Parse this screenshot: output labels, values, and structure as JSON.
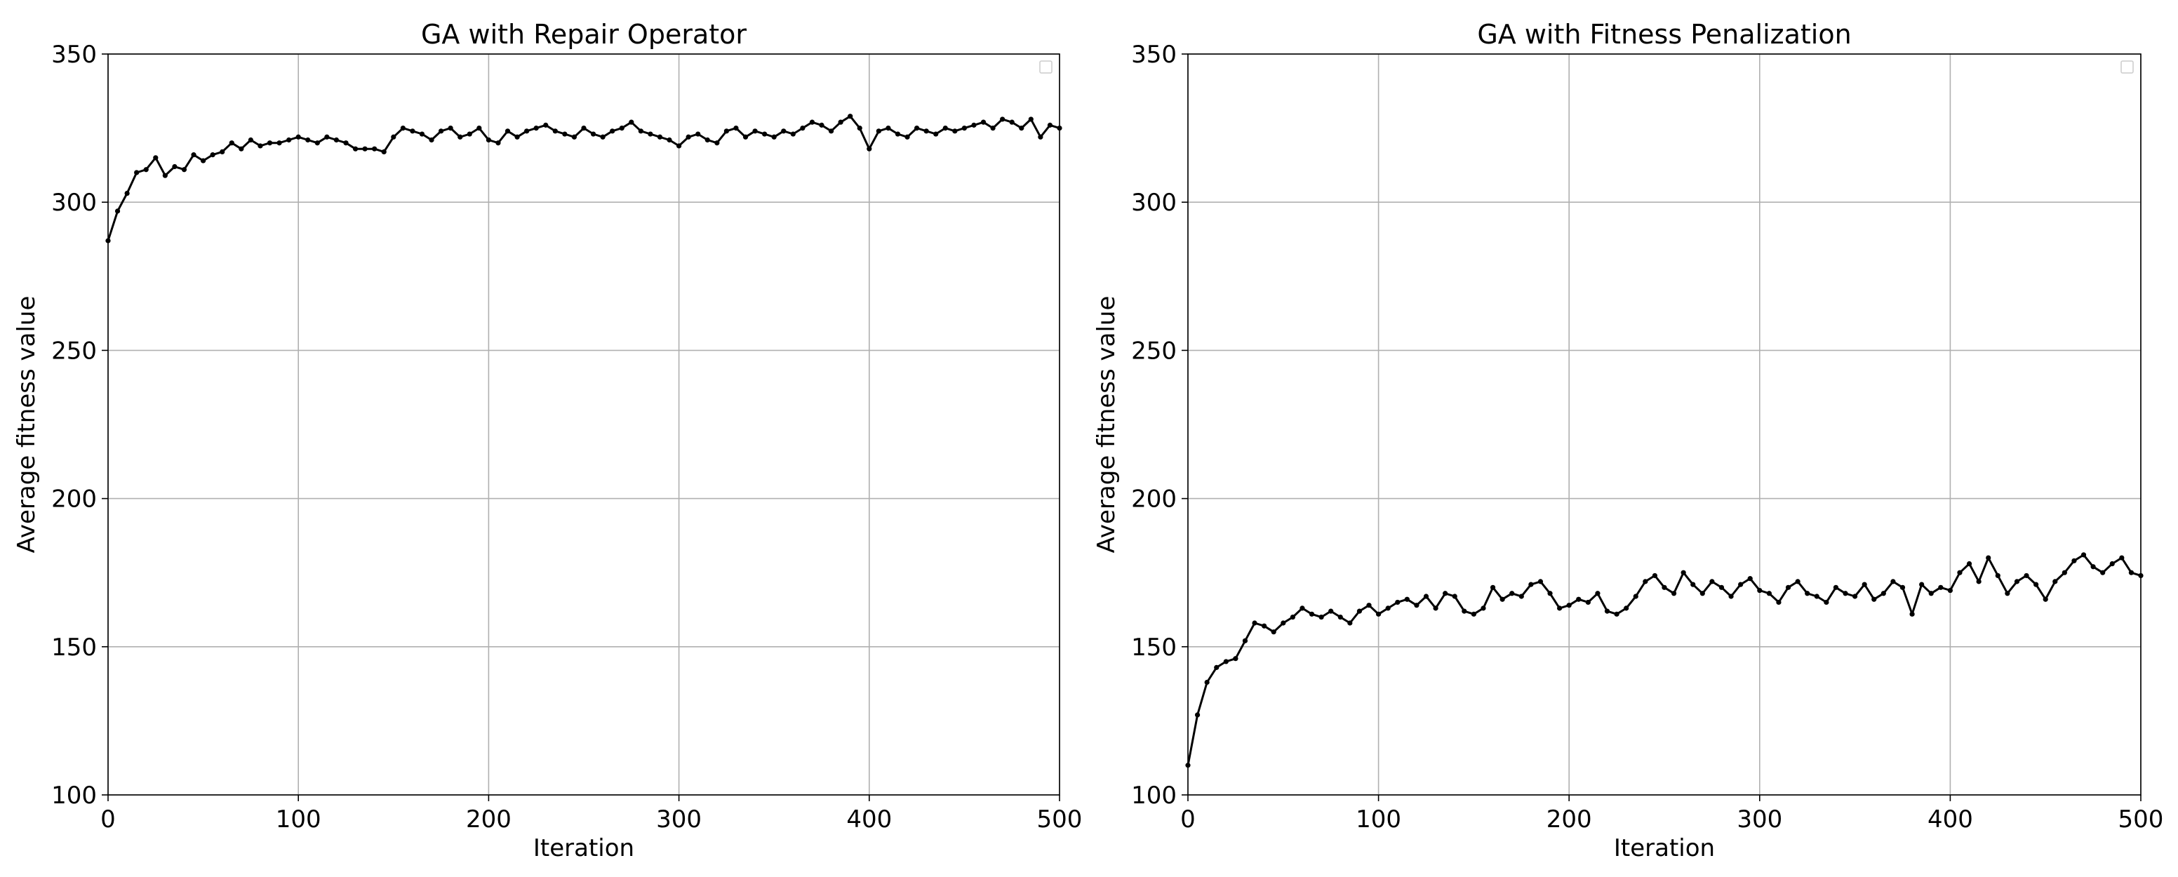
{
  "chart_data": [
    {
      "type": "line",
      "title": "GA with Repair Operator",
      "xlabel": "Iteration",
      "ylabel": "Average fitness value",
      "xlim": [
        0,
        500
      ],
      "ylim": [
        100,
        350
      ],
      "xticks": [
        0,
        100,
        200,
        300,
        400,
        500
      ],
      "yticks": [
        100,
        150,
        200,
        250,
        300,
        350
      ],
      "grid": true,
      "legend": "top-right, empty",
      "marker": "dot",
      "color": "#000000",
      "x": [
        0,
        5,
        10,
        15,
        20,
        25,
        30,
        35,
        40,
        45,
        50,
        55,
        60,
        65,
        70,
        75,
        80,
        85,
        90,
        95,
        100,
        105,
        110,
        115,
        120,
        125,
        130,
        135,
        140,
        145,
        150,
        155,
        160,
        165,
        170,
        175,
        180,
        185,
        190,
        195,
        200,
        205,
        210,
        215,
        220,
        225,
        230,
        235,
        240,
        245,
        250,
        255,
        260,
        265,
        270,
        275,
        280,
        285,
        290,
        295,
        300,
        305,
        310,
        315,
        320,
        325,
        330,
        335,
        340,
        345,
        350,
        355,
        360,
        365,
        370,
        375,
        380,
        385,
        390,
        395,
        400,
        405,
        410,
        415,
        420,
        425,
        430,
        435,
        440,
        445,
        450,
        455,
        460,
        465,
        470,
        475,
        480,
        485,
        490,
        495,
        500
      ],
      "y": [
        287,
        297,
        303,
        310,
        311,
        315,
        309,
        312,
        311,
        316,
        314,
        316,
        317,
        320,
        318,
        321,
        319,
        320,
        320,
        321,
        322,
        321,
        320,
        322,
        321,
        320,
        318,
        318,
        318,
        317,
        322,
        325,
        324,
        323,
        321,
        324,
        325,
        322,
        323,
        325,
        321,
        320,
        324,
        322,
        324,
        325,
        326,
        324,
        323,
        322,
        325,
        323,
        322,
        324,
        325,
        327,
        324,
        323,
        322,
        321,
        319,
        322,
        323,
        321,
        320,
        324,
        325,
        322,
        324,
        323,
        322,
        324,
        323,
        325,
        327,
        326,
        324,
        327,
        329,
        325,
        318,
        324,
        325,
        323,
        322,
        325,
        324,
        323,
        325,
        324,
        325,
        326,
        327,
        325,
        328,
        327,
        325,
        328,
        322,
        326,
        325
      ]
    },
    {
      "type": "line",
      "title": "GA with Fitness Penalization",
      "xlabel": "Iteration",
      "ylabel": "Average fitness value",
      "xlim": [
        0,
        500
      ],
      "ylim": [
        100,
        350
      ],
      "xticks": [
        0,
        100,
        200,
        300,
        400,
        500
      ],
      "yticks": [
        100,
        150,
        200,
        250,
        300,
        350
      ],
      "grid": true,
      "legend": "top-right, empty",
      "marker": "dot",
      "color": "#000000",
      "x": [
        0,
        5,
        10,
        15,
        20,
        25,
        30,
        35,
        40,
        45,
        50,
        55,
        60,
        65,
        70,
        75,
        80,
        85,
        90,
        95,
        100,
        105,
        110,
        115,
        120,
        125,
        130,
        135,
        140,
        145,
        150,
        155,
        160,
        165,
        170,
        175,
        180,
        185,
        190,
        195,
        200,
        205,
        210,
        215,
        220,
        225,
        230,
        235,
        240,
        245,
        250,
        255,
        260,
        265,
        270,
        275,
        280,
        285,
        290,
        295,
        300,
        305,
        310,
        315,
        320,
        325,
        330,
        335,
        340,
        345,
        350,
        355,
        360,
        365,
        370,
        375,
        380,
        385,
        390,
        395,
        400,
        405,
        410,
        415,
        420,
        425,
        430,
        435,
        440,
        445,
        450,
        455,
        460,
        465,
        470,
        475,
        480,
        485,
        490,
        495,
        500
      ],
      "y": [
        110,
        127,
        138,
        143,
        145,
        146,
        152,
        158,
        157,
        155,
        158,
        160,
        163,
        161,
        160,
        162,
        160,
        158,
        162,
        164,
        161,
        163,
        165,
        166,
        164,
        167,
        163,
        168,
        167,
        162,
        161,
        163,
        170,
        166,
        168,
        167,
        171,
        172,
        168,
        163,
        164,
        166,
        165,
        168,
        162,
        161,
        163,
        167,
        172,
        174,
        170,
        168,
        175,
        171,
        168,
        172,
        170,
        167,
        171,
        173,
        169,
        168,
        165,
        170,
        172,
        168,
        167,
        165,
        170,
        168,
        167,
        171,
        166,
        168,
        172,
        170,
        161,
        171,
        168,
        170,
        169,
        175,
        178,
        172,
        180,
        174,
        168,
        172,
        174,
        171,
        166,
        172,
        175,
        179,
        181,
        177,
        175,
        178,
        180,
        175,
        174
      ]
    }
  ]
}
